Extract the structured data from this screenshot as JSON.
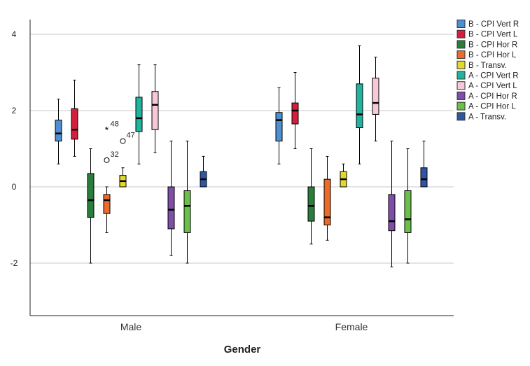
{
  "chart_data": {
    "type": "box",
    "xlabel": "Gender",
    "ylabel": "",
    "title": "",
    "ylim": [
      -3.35,
      4.35
    ],
    "yticks": [
      4,
      2,
      0,
      -2
    ],
    "grid": true,
    "legend_position": "right",
    "categories": [
      "Male",
      "Female"
    ],
    "series": [
      {
        "name": "B - CPI Vert R",
        "color": "#4d8fd1",
        "boxes": [
          {
            "min": 0.6,
            "q1": 1.2,
            "median": 1.4,
            "q3": 1.75,
            "max": 2.3
          },
          {
            "min": 0.6,
            "q1": 1.2,
            "median": 1.75,
            "q3": 1.95,
            "max": 2.6
          }
        ]
      },
      {
        "name": "B - CPI Vert L",
        "color": "#d41f3c",
        "boxes": [
          {
            "min": 0.8,
            "q1": 1.25,
            "median": 1.5,
            "q3": 2.05,
            "max": 2.8
          },
          {
            "min": 1.0,
            "q1": 1.65,
            "median": 2.0,
            "q3": 2.2,
            "max": 3.0
          }
        ]
      },
      {
        "name": "B - CPI Hor R",
        "color": "#2a7e3c",
        "boxes": [
          {
            "min": -2.0,
            "q1": -0.8,
            "median": -0.35,
            "q3": 0.35,
            "max": 1.0
          },
          {
            "min": -1.5,
            "q1": -0.9,
            "median": -0.5,
            "q3": 0.0,
            "max": 1.0
          }
        ]
      },
      {
        "name": "B - CPI Hor L",
        "color": "#ec6b2a",
        "boxes": [
          {
            "min": -1.2,
            "q1": -0.7,
            "median": -0.35,
            "q3": -0.2,
            "max": 0.0
          },
          {
            "min": -1.4,
            "q1": -1.0,
            "median": -0.8,
            "q3": 0.2,
            "max": 0.8
          }
        ]
      },
      {
        "name": "B - Transv.",
        "color": "#e3d82c",
        "boxes": [
          {
            "min": 0.0,
            "q1": 0.0,
            "median": 0.15,
            "q3": 0.3,
            "max": 0.5
          },
          {
            "min": 0.0,
            "q1": 0.0,
            "median": 0.2,
            "q3": 0.4,
            "max": 0.6
          }
        ]
      },
      {
        "name": "A - CPI Vert R",
        "color": "#1fb3a0",
        "boxes": [
          {
            "min": 0.6,
            "q1": 1.45,
            "median": 1.8,
            "q3": 2.35,
            "max": 3.2
          },
          {
            "min": 0.6,
            "q1": 1.55,
            "median": 1.9,
            "q3": 2.7,
            "max": 3.7
          }
        ]
      },
      {
        "name": "A - CPI Vert L",
        "color": "#f7c8d8",
        "boxes": [
          {
            "min": 0.9,
            "q1": 1.5,
            "median": 2.15,
            "q3": 2.5,
            "max": 3.2
          },
          {
            "min": 1.2,
            "q1": 1.9,
            "median": 2.2,
            "q3": 2.85,
            "max": 3.4
          }
        ]
      },
      {
        "name": "A - CPI Hor R",
        "color": "#7f4ea8",
        "boxes": [
          {
            "min": -1.8,
            "q1": -1.1,
            "median": -0.6,
            "q3": 0.0,
            "max": 1.2
          },
          {
            "min": -2.1,
            "q1": -1.15,
            "median": -0.9,
            "q3": -0.2,
            "max": 1.2
          }
        ]
      },
      {
        "name": "A - CPI Hor L",
        "color": "#6cc04a",
        "boxes": [
          {
            "min": -2.0,
            "q1": -1.2,
            "median": -0.5,
            "q3": -0.1,
            "max": 1.2
          },
          {
            "min": -2.0,
            "q1": -1.2,
            "median": -0.85,
            "q3": -0.1,
            "max": 1.0
          }
        ]
      },
      {
        "name": "A - Transv.",
        "color": "#2e56a6",
        "boxes": [
          {
            "min": 0.0,
            "q1": 0.0,
            "median": 0.2,
            "q3": 0.4,
            "max": 0.8
          },
          {
            "min": 0.0,
            "q1": 0.0,
            "median": 0.2,
            "q3": 0.5,
            "max": 1.2
          }
        ]
      }
    ],
    "outliers": [
      {
        "series": "B - CPI Hor L",
        "category": "Male",
        "value": 1.5,
        "label": "48",
        "marker": "star"
      },
      {
        "series": "B - CPI Hor L",
        "category": "Male",
        "value": 0.7,
        "label": "32",
        "marker": "circle"
      },
      {
        "series": "B - Transv.",
        "category": "Male",
        "value": 1.2,
        "label": "47",
        "marker": "circle"
      }
    ]
  }
}
